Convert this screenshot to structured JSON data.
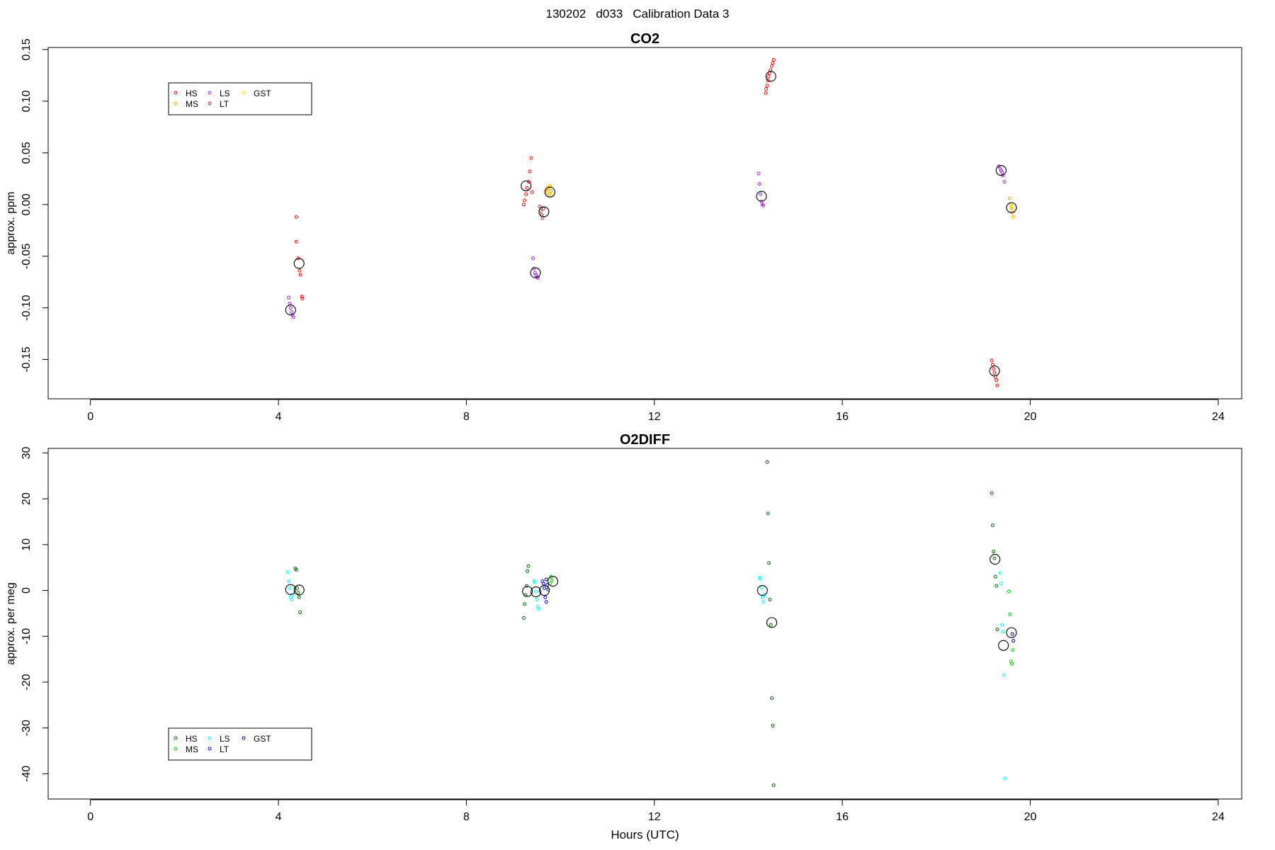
{
  "figure": {
    "suptitle": "130202   d033   Calibration Data 3",
    "xlabel": "Hours (UTC)"
  },
  "chart_data": [
    {
      "type": "scatter",
      "title": "CO2",
      "xlabel": "",
      "ylabel": "approx. ppm",
      "xlim": [
        -0.9,
        24.5
      ],
      "ylim": [
        -0.188,
        0.152
      ],
      "xticks": [
        "0",
        "4",
        "8",
        "12",
        "16",
        "20",
        "24"
      ],
      "yticks": [
        "0.15",
        "0.10",
        "0.05",
        "0.00",
        "-0.05",
        "-0.10",
        "-0.15"
      ],
      "grid": false,
      "legend": {
        "placement": "top-left",
        "columns": [
          [
            "HS",
            "MS"
          ],
          [
            "LS",
            "LT"
          ],
          [
            "GST"
          ]
        ]
      },
      "series": [
        {
          "name": "HS",
          "color": "#ff0000",
          "x": [
            4.38,
            4.38,
            4.42,
            4.45,
            4.47,
            4.5,
            4.51,
            9.22,
            9.24,
            9.27,
            9.29,
            9.33,
            9.35,
            9.38,
            9.4,
            14.37,
            14.38,
            14.4,
            14.42,
            14.43,
            14.45,
            14.47,
            14.5,
            14.52,
            14.54,
            19.18,
            19.2,
            19.22,
            19.24,
            19.26,
            19.28,
            19.3
          ],
          "y": [
            -0.012,
            -0.036,
            -0.052,
            -0.064,
            -0.068,
            -0.089,
            -0.091,
            0.0,
            0.004,
            0.01,
            0.016,
            0.022,
            0.032,
            0.045,
            0.012,
            0.108,
            0.112,
            0.115,
            0.12,
            0.124,
            0.127,
            0.13,
            0.134,
            0.137,
            0.14,
            -0.151,
            -0.155,
            -0.159,
            -0.163,
            -0.167,
            -0.17,
            -0.175
          ]
        },
        {
          "name": "MS",
          "color": "#ffa500",
          "x": [
            9.68,
            9.7,
            9.72,
            9.76,
            9.78,
            9.8,
            19.56,
            19.58,
            19.6,
            19.62,
            19.64
          ],
          "y": [
            0.012,
            0.014,
            0.016,
            0.01,
            0.018,
            0.013,
            0.006,
            0.0,
            -0.004,
            -0.008,
            -0.012
          ]
        },
        {
          "name": "LS",
          "color": "#a020f0",
          "x": [
            4.22,
            4.24,
            4.26,
            4.28,
            4.3,
            4.32,
            9.42,
            9.44,
            9.46,
            9.48,
            9.5,
            9.52,
            14.22,
            14.24,
            14.26,
            14.28,
            14.3,
            14.32,
            19.33,
            19.36,
            19.38,
            19.4,
            19.42,
            19.45
          ],
          "y": [
            -0.09,
            -0.096,
            -0.1,
            -0.104,
            -0.107,
            -0.109,
            -0.052,
            -0.062,
            -0.066,
            -0.068,
            -0.07,
            -0.071,
            0.03,
            0.02,
            0.01,
            0.003,
            0.0,
            -0.001,
            0.037,
            0.035,
            0.033,
            0.031,
            0.028,
            0.022
          ]
        },
        {
          "name": "LT",
          "color": "#b22222",
          "x": [
            9.56,
            9.58,
            9.6,
            9.62,
            9.64
          ],
          "y": [
            -0.002,
            -0.006,
            -0.01,
            -0.013,
            -0.004
          ]
        },
        {
          "name": "GST",
          "color": "#ffd700",
          "x": [
            9.74,
            9.76,
            9.78,
            9.8,
            19.6,
            19.62
          ],
          "y": [
            0.015,
            0.017,
            0.011,
            0.009,
            -0.002,
            -0.004
          ]
        },
        {
          "name": "",
          "color": "#000000",
          "marker": "large-open-circle",
          "x": [
            4.26,
            4.44,
            9.27,
            9.47,
            9.65,
            9.78,
            14.28,
            14.48,
            19.24,
            19.38,
            19.6
          ],
          "y": [
            -0.102,
            -0.057,
            0.018,
            -0.066,
            -0.007,
            0.012,
            0.008,
            0.124,
            -0.161,
            0.033,
            -0.003
          ]
        }
      ]
    },
    {
      "type": "scatter",
      "title": "O2DIFF",
      "xlabel": "Hours (UTC)",
      "ylabel": "approx. per meg",
      "xlim": [
        -0.9,
        24.5
      ],
      "ylim": [
        -45.5,
        31
      ],
      "xticks": [
        "0",
        "4",
        "8",
        "12",
        "16",
        "20",
        "24"
      ],
      "yticks": [
        "30",
        "20",
        "10",
        "0",
        "-10",
        "-20",
        "-30",
        "-40"
      ],
      "grid": false,
      "legend": {
        "placement": "bottom-left",
        "columns": [
          [
            "HS",
            "MS"
          ],
          [
            "LS",
            "LT"
          ],
          [
            "GST"
          ]
        ]
      },
      "series": [
        {
          "name": "HS",
          "color": "#006400",
          "x": [
            4.36,
            4.38,
            4.4,
            4.42,
            4.44,
            4.46,
            9.22,
            9.24,
            9.26,
            9.28,
            9.3,
            9.32,
            14.4,
            14.42,
            14.44,
            14.46,
            14.48,
            14.5,
            14.52,
            14.54,
            19.18,
            19.2,
            19.22,
            19.24,
            19.26,
            19.28,
            19.3
          ],
          "y": [
            4.8,
            4.5,
            0.5,
            -0.5,
            -1.5,
            -4.8,
            -6.0,
            -3.0,
            -1.0,
            1.0,
            4.2,
            5.3,
            28.0,
            16.8,
            6.0,
            -2.0,
            -7.5,
            -23.5,
            -29.5,
            -42.5,
            21.2,
            14.2,
            8.5,
            7.0,
            3.0,
            1.0,
            -8.5
          ]
        },
        {
          "name": "MS",
          "color": "#00cc00",
          "x": [
            9.78,
            9.8,
            9.82,
            19.55,
            19.57,
            19.59,
            19.61,
            19.63
          ],
          "y": [
            1.5,
            3.0,
            2.2,
            -0.2,
            -5.2,
            -15.5,
            -16.0,
            -13.0
          ]
        },
        {
          "name": "LS",
          "color": "#00ffff",
          "x": [
            4.2,
            4.22,
            4.24,
            4.26,
            4.28,
            4.3,
            9.44,
            9.46,
            9.48,
            9.5,
            9.52,
            9.54,
            14.24,
            14.26,
            14.28,
            14.3,
            14.32,
            14.34,
            19.36,
            19.38,
            19.4,
            19.42,
            19.44,
            19.46
          ],
          "y": [
            4.0,
            2.0,
            0.5,
            -1.5,
            -2.0,
            -1.0,
            2.0,
            1.8,
            -0.2,
            -2.0,
            -3.5,
            -4.0,
            2.8,
            2.5,
            0.5,
            -1.5,
            -2.5,
            -1.0,
            3.8,
            1.5,
            -7.5,
            -9.0,
            -18.5,
            -41.0
          ]
        },
        {
          "name": "LT",
          "color": "#0000ff",
          "x": [
            9.62,
            9.64,
            9.66,
            9.68,
            9.7
          ],
          "y": [
            2.0,
            1.5,
            0.5,
            -1.5,
            -2.5
          ]
        },
        {
          "name": "GST",
          "color": "#00008b",
          "x": [
            9.7,
            9.72,
            9.74,
            19.62,
            19.64
          ],
          "y": [
            2.4,
            1.2,
            0.2,
            -9.5,
            -11.0
          ]
        },
        {
          "name": "",
          "color": "#000000",
          "marker": "large-open-circle",
          "x": [
            4.26,
            4.44,
            9.3,
            9.48,
            9.66,
            9.84,
            14.3,
            14.5,
            19.25,
            19.43,
            19.6
          ],
          "y": [
            0.2,
            0.1,
            -0.2,
            -0.3,
            0.0,
            2.0,
            0.0,
            -7.0,
            6.8,
            -12.0,
            -9.2
          ]
        }
      ]
    }
  ]
}
